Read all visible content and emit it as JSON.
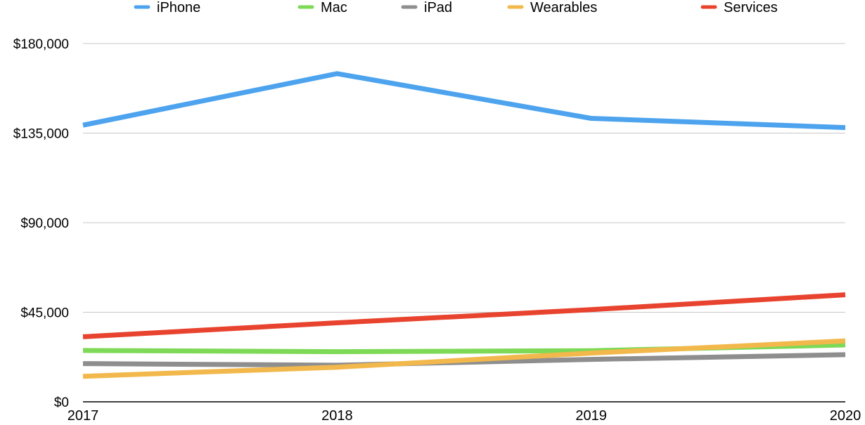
{
  "chart_data": {
    "type": "line",
    "title": "",
    "xlabel": "",
    "ylabel": "",
    "x": [
      "2017",
      "2018",
      "2019",
      "2020"
    ],
    "ylim": [
      0,
      180000
    ],
    "y_ticks": [
      0,
      45000,
      90000,
      135000,
      180000
    ],
    "y_tick_labels": [
      "$0",
      "$45,000",
      "$90,000",
      "$135,000",
      "$180,000"
    ],
    "grid": true,
    "legend_position": "top",
    "series": [
      {
        "name": "iPhone",
        "color": "#4da3ee",
        "values": [
          139000,
          164900,
          142400,
          137800
        ]
      },
      {
        "name": "Mac",
        "color": "#7ed957",
        "values": [
          25800,
          25200,
          25700,
          28600
        ]
      },
      {
        "name": "iPad",
        "color": "#8e8e8e",
        "values": [
          19200,
          18400,
          21300,
          23700
        ]
      },
      {
        "name": "Wearables",
        "color": "#f2b84b",
        "values": [
          12800,
          17400,
          24500,
          30600
        ]
      },
      {
        "name": "Services",
        "color": "#e8432e",
        "values": [
          32700,
          39700,
          46300,
          53800
        ]
      }
    ]
  }
}
